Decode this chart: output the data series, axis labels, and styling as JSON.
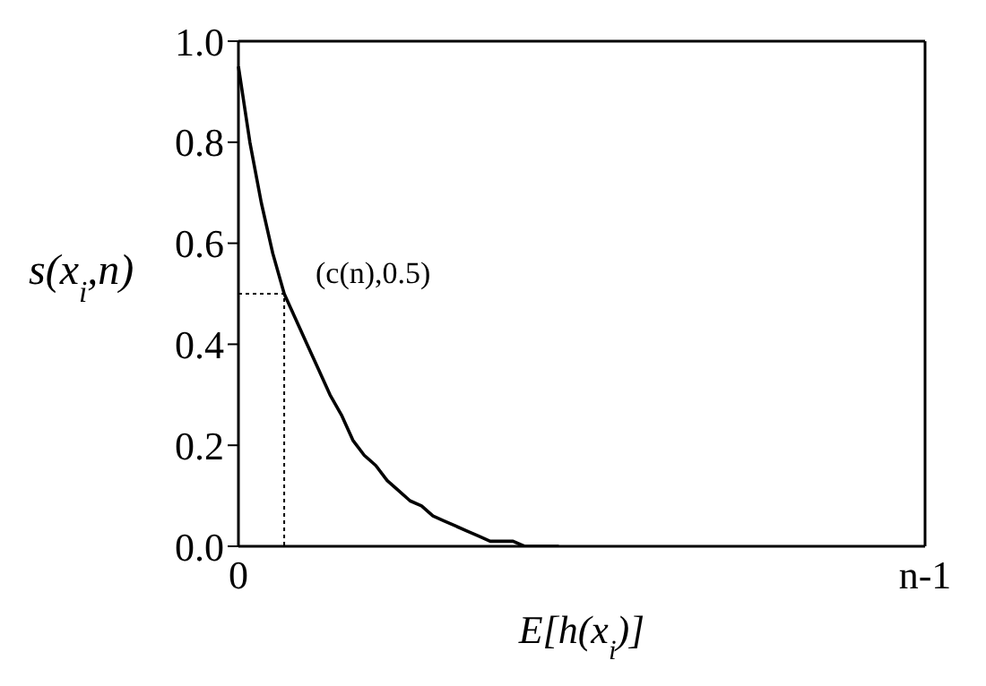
{
  "chart_data": {
    "type": "line",
    "xlabel": "E[h(x$_{i}$)]",
    "ylabel": "s(x$_{i}$,n)",
    "categories": [
      "0",
      null,
      null,
      null,
      null,
      null,
      null,
      null,
      null,
      null,
      null,
      null,
      null,
      null,
      null,
      null,
      null,
      null,
      null,
      null,
      null,
      null,
      null,
      null,
      null,
      null,
      null,
      null,
      null,
      null,
      null,
      null,
      null,
      null,
      null,
      null,
      null,
      null,
      null,
      null,
      null,
      null,
      null,
      null,
      null,
      null,
      null,
      null,
      null,
      null,
      null,
      null,
      null,
      null,
      null,
      null,
      null,
      null,
      null,
      null,
      "n-1"
    ],
    "ylim": [
      0,
      1
    ],
    "yticks": [
      {
        "value": 0,
        "label": "0.0"
      },
      {
        "value": 0.2,
        "label": "0.2"
      },
      {
        "value": 0.4,
        "label": "0.4"
      },
      {
        "value": 0.6,
        "label": "0.6"
      },
      {
        "value": 0.8,
        "label": "0.8"
      },
      {
        "value": 1,
        "label": "1.0"
      }
    ],
    "marker": "none",
    "series": [
      {
        "color": "#000000",
        "line_style": "solid",
        "values": [
          0.95,
          0.8,
          0.68,
          0.58,
          0.5,
          0.45,
          0.4,
          0.35,
          0.3,
          0.26,
          0.21,
          0.18,
          0.16,
          0.13,
          0.11,
          0.09,
          0.08,
          0.06,
          0.05,
          0.04,
          0.03,
          0.02,
          0.01,
          0.01,
          0.01,
          0,
          0,
          0,
          0,
          null,
          null,
          null,
          null,
          null,
          null,
          null,
          null,
          null,
          null,
          null,
          null,
          null,
          null,
          null,
          null,
          null,
          null,
          null,
          null,
          null,
          null,
          null,
          null,
          null,
          null,
          null,
          null,
          null,
          null,
          null,
          null
        ]
      },
      {
        "type": "step",
        "color": "#000000",
        "line_style": "dotted",
        "values": [
          0.5,
          0.5,
          0.5,
          0.5,
          0,
          null,
          null,
          null,
          null,
          null,
          null,
          null,
          null,
          null,
          null,
          null,
          null,
          null,
          null,
          null,
          null,
          null,
          null,
          null,
          null,
          null,
          null,
          null,
          null,
          null,
          null,
          null,
          null,
          null,
          null,
          null,
          null,
          null,
          null,
          null,
          null,
          null,
          null,
          null,
          null,
          null,
          null,
          null,
          null,
          null,
          null,
          null,
          null,
          null,
          null,
          null,
          null,
          null,
          null,
          null,
          null
        ]
      }
    ],
    "annotations": [
      "(c(n),0.5)"
    ]
  }
}
